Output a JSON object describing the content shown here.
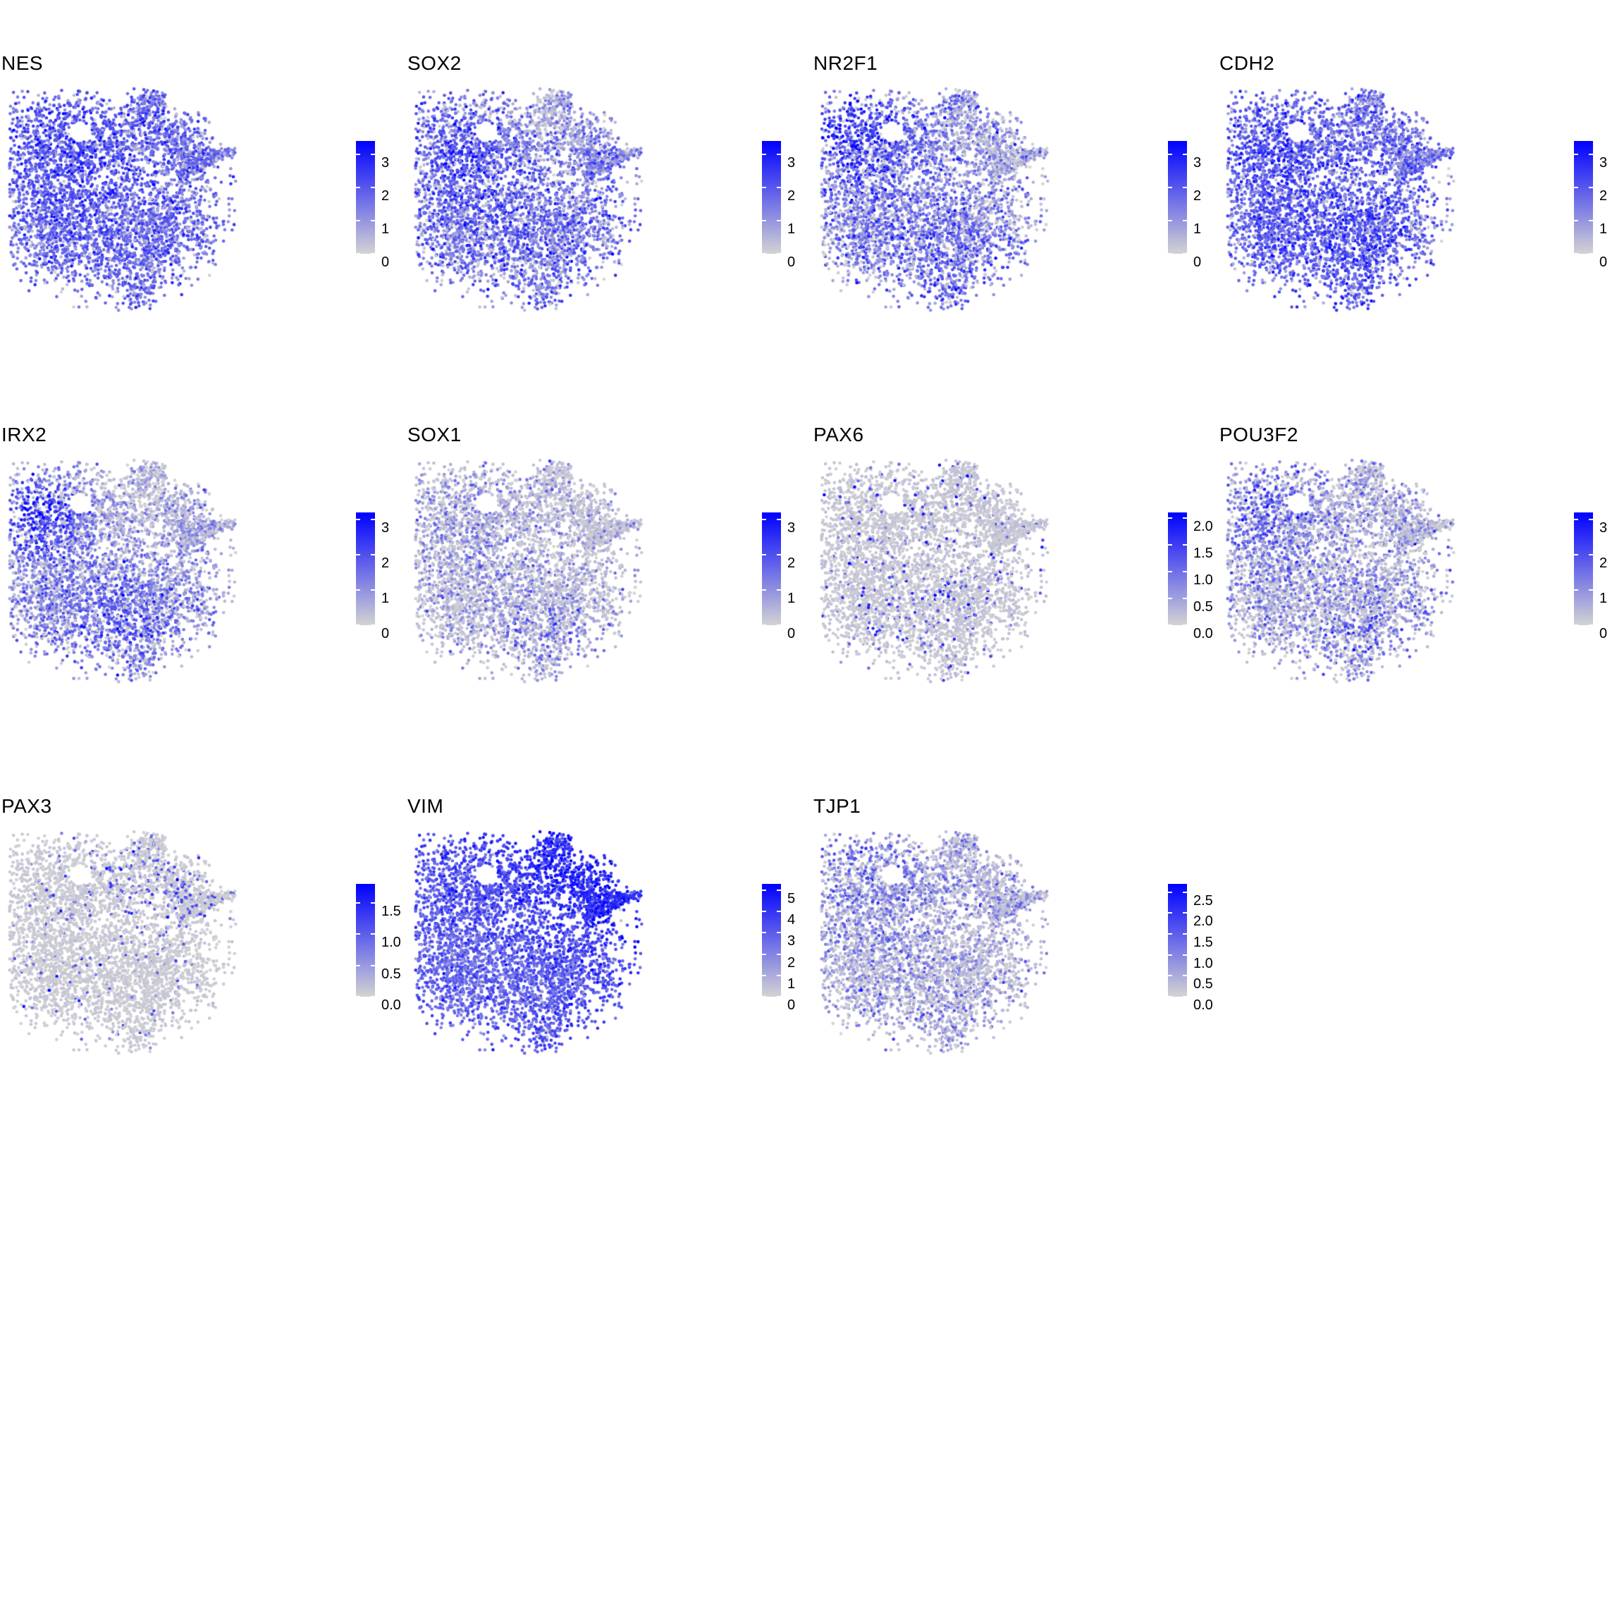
{
  "chart_data": {
    "type": "scatter",
    "subtype": "umap_feature_plots",
    "title": "",
    "xlabel": "",
    "ylabel": "",
    "axes_visible": false,
    "grid_lines": false,
    "legend_position": "right-of-each-panel",
    "colormap": {
      "low": "#D3D3D3",
      "high": "#0000FF"
    },
    "grid": {
      "columns": 4,
      "rows": 3
    },
    "seed": 42,
    "embedding": {
      "clusters": [
        {
          "cx": 0.2,
          "cy": 0.25,
          "rx": 0.155,
          "ry": 0.125,
          "n": 700
        },
        {
          "cx": 0.42,
          "cy": 0.21,
          "rx": 0.14,
          "ry": 0.095,
          "n": 350
        },
        {
          "cx": 0.595,
          "cy": 0.095,
          "rx": 0.045,
          "ry": 0.075,
          "n": 110
        },
        {
          "cx": 0.63,
          "cy": 0.045,
          "rx": 0.03,
          "ry": 0.035,
          "n": 45
        },
        {
          "cx": 0.68,
          "cy": 0.22,
          "rx": 0.1,
          "ry": 0.085,
          "n": 260
        },
        {
          "cx": 0.78,
          "cy": 0.29,
          "rx": 0.07,
          "ry": 0.055,
          "n": 140
        },
        {
          "cx": 0.4,
          "cy": 0.5,
          "rx": 0.3,
          "ry": 0.145,
          "n": 1050
        },
        {
          "cx": 0.14,
          "cy": 0.6,
          "rx": 0.11,
          "ry": 0.13,
          "n": 380
        },
        {
          "cx": 0.45,
          "cy": 0.72,
          "rx": 0.22,
          "ry": 0.12,
          "n": 780
        },
        {
          "cx": 0.68,
          "cy": 0.62,
          "rx": 0.12,
          "ry": 0.115,
          "n": 430
        },
        {
          "cx": 0.575,
          "cy": 0.895,
          "rx": 0.045,
          "ry": 0.065,
          "n": 100
        },
        {
          "type": "spike",
          "x0": 0.74,
          "y0": 0.37,
          "x1": 0.985,
          "y1": 0.285,
          "w0": 0.05,
          "w1": 0.006,
          "n": 240
        }
      ],
      "holes": [
        {
          "x": 0.315,
          "y": 0.2,
          "rx": 0.052,
          "ry": 0.045
        }
      ]
    },
    "panels": [
      {
        "gene": "NES",
        "colorbar_max": 3.4,
        "ticks": [
          {
            "value": 3,
            "label": "3"
          },
          {
            "value": 2,
            "label": "2"
          },
          {
            "value": 1,
            "label": "1"
          },
          {
            "value": 0,
            "label": "0"
          }
        ],
        "expression": {
          "frac": 0.96,
          "base": 1.5,
          "noise": 0.65,
          "lowbase": 0.5,
          "hs": [
            {
              "x": 0.2,
              "y": 0.25,
              "r": 0.22,
              "w": 0.55
            },
            {
              "x": 0.5,
              "y": 0.62,
              "r": 0.32,
              "w": 0.25
            }
          ],
          "fhs": []
        }
      },
      {
        "gene": "SOX2",
        "colorbar_max": 3.4,
        "ticks": [
          {
            "value": 3,
            "label": "3"
          },
          {
            "value": 2,
            "label": "2"
          },
          {
            "value": 1,
            "label": "1"
          },
          {
            "value": 0,
            "label": "0"
          }
        ],
        "expression": {
          "frac": 0.9,
          "base": 1.3,
          "noise": 0.7,
          "lowbase": 0.5,
          "hs": [
            {
              "x": 0.18,
              "y": 0.28,
              "r": 0.2,
              "w": 0.7
            },
            {
              "x": 0.58,
              "y": 0.13,
              "r": 0.15,
              "w": -0.8
            },
            {
              "x": 0.52,
              "y": 0.62,
              "r": 0.3,
              "w": 0.35
            }
          ],
          "fhs": []
        }
      },
      {
        "gene": "NR2F1",
        "colorbar_max": 3.4,
        "ticks": [
          {
            "value": 3,
            "label": "3"
          },
          {
            "value": 2,
            "label": "2"
          },
          {
            "value": 1,
            "label": "1"
          },
          {
            "value": 0,
            "label": "0"
          }
        ],
        "expression": {
          "frac": 0.88,
          "base": 1.0,
          "noise": 0.75,
          "lowbase": 0.5,
          "hs": [
            {
              "x": 0.15,
              "y": 0.22,
              "r": 0.18,
              "w": 1.3
            },
            {
              "x": 0.55,
              "y": 0.72,
              "r": 0.25,
              "w": 0.6
            },
            {
              "x": 0.8,
              "y": 0.3,
              "r": 0.14,
              "w": -0.4
            }
          ],
          "fhs": []
        }
      },
      {
        "gene": "CDH2",
        "colorbar_max": 3.4,
        "ticks": [
          {
            "value": 3,
            "label": "3"
          },
          {
            "value": 2,
            "label": "2"
          },
          {
            "value": 1,
            "label": "1"
          },
          {
            "value": 0,
            "label": "0"
          }
        ],
        "expression": {
          "frac": 0.95,
          "base": 1.4,
          "noise": 0.65,
          "lowbase": 0.5,
          "hs": [
            {
              "x": 0.2,
              "y": 0.22,
              "r": 0.18,
              "w": 0.6
            },
            {
              "x": 0.5,
              "y": 0.68,
              "r": 0.3,
              "w": 0.7
            }
          ],
          "fhs": []
        }
      },
      {
        "gene": "IRX2",
        "colorbar_max": 3.2,
        "ticks": [
          {
            "value": 3,
            "label": "3"
          },
          {
            "value": 2,
            "label": "2"
          },
          {
            "value": 1,
            "label": "1"
          },
          {
            "value": 0,
            "label": "0"
          }
        ],
        "expression": {
          "frac": 0.8,
          "base": 0.75,
          "noise": 0.6,
          "lowbase": 0.45,
          "hs": [
            {
              "x": 0.13,
              "y": 0.24,
              "r": 0.14,
              "w": 1.7
            },
            {
              "x": 0.45,
              "y": 0.72,
              "r": 0.26,
              "w": 0.9
            },
            {
              "x": 0.58,
              "y": 0.18,
              "r": 0.18,
              "w": -0.45
            }
          ],
          "fhs": []
        }
      },
      {
        "gene": "SOX1",
        "colorbar_max": 3.2,
        "ticks": [
          {
            "value": 3,
            "label": "3"
          },
          {
            "value": 2,
            "label": "2"
          },
          {
            "value": 1,
            "label": "1"
          },
          {
            "value": 0,
            "label": "0"
          }
        ],
        "expression": {
          "frac": 0.3,
          "base": 0.7,
          "noise": 0.55,
          "lowbase": 0.4,
          "hs": [
            {
              "x": 0.2,
              "y": 0.3,
              "r": 0.2,
              "w": 0.4
            },
            {
              "x": 0.55,
              "y": 0.8,
              "r": 0.18,
              "w": 0.5
            }
          ],
          "fhs": [
            {
              "x": 0.2,
              "y": 0.3,
              "r": 0.25,
              "w": 0.25
            },
            {
              "x": 0.55,
              "y": 0.8,
              "r": 0.2,
              "w": 0.3
            }
          ]
        }
      },
      {
        "gene": "PAX6",
        "colorbar_max": 2.1,
        "ticks": [
          {
            "value": 2.0,
            "label": "2.0"
          },
          {
            "value": 1.5,
            "label": "1.5"
          },
          {
            "value": 1.0,
            "label": "1.0"
          },
          {
            "value": 0.5,
            "label": "0.5"
          },
          {
            "value": 0.0,
            "label": "0.0"
          }
        ],
        "expression": {
          "frac": 0.06,
          "base": 1.3,
          "noise": 0.45,
          "lowbase": 0.25,
          "hs": [],
          "fhs": [
            {
              "x": 0.5,
              "y": 0.75,
              "r": 0.3,
              "w": 0.04
            }
          ]
        }
      },
      {
        "gene": "POU3F2",
        "colorbar_max": 3.2,
        "ticks": [
          {
            "value": 3,
            "label": "3"
          },
          {
            "value": 2,
            "label": "2"
          },
          {
            "value": 1,
            "label": "1"
          },
          {
            "value": 0,
            "label": "0"
          }
        ],
        "expression": {
          "frac": 0.55,
          "base": 0.85,
          "noise": 0.6,
          "lowbase": 0.4,
          "hs": [
            {
              "x": 0.16,
              "y": 0.25,
              "r": 0.17,
              "w": 0.8
            },
            {
              "x": 0.6,
              "y": 0.78,
              "r": 0.2,
              "w": 0.6
            }
          ],
          "fhs": [
            {
              "x": 0.16,
              "y": 0.25,
              "r": 0.2,
              "w": 0.25
            }
          ]
        }
      },
      {
        "gene": "PAX3",
        "colorbar_max": 1.8,
        "ticks": [
          {
            "value": 1.5,
            "label": "1.5"
          },
          {
            "value": 1.0,
            "label": "1.0"
          },
          {
            "value": 0.5,
            "label": "0.5"
          },
          {
            "value": 0.0,
            "label": "0.0"
          }
        ],
        "expression": {
          "frac": 0.035,
          "base": 1.0,
          "noise": 0.35,
          "lowbase": 0.15,
          "hs": [],
          "fhs": [
            {
              "x": 0.52,
              "y": 0.15,
              "r": 0.22,
              "w": 0.14
            },
            {
              "x": 0.72,
              "y": 0.3,
              "r": 0.15,
              "w": 0.08
            }
          ]
        }
      },
      {
        "gene": "VIM",
        "colorbar_max": 5.3,
        "ticks": [
          {
            "value": 5,
            "label": "5"
          },
          {
            "value": 4,
            "label": "4"
          },
          {
            "value": 3,
            "label": "3"
          },
          {
            "value": 2,
            "label": "2"
          },
          {
            "value": 1,
            "label": "1"
          },
          {
            "value": 0,
            "label": "0"
          }
        ],
        "expression": {
          "frac": 0.995,
          "base": 3.3,
          "noise": 0.75,
          "lowbase": 1.0,
          "hs": [
            {
              "x": 0.6,
              "y": 0.14,
              "r": 0.2,
              "w": 0.9
            },
            {
              "x": 0.88,
              "y": 0.32,
              "r": 0.13,
              "w": 0.9
            },
            {
              "x": 0.2,
              "y": 0.68,
              "r": 0.28,
              "w": -0.6
            }
          ],
          "fhs": []
        }
      },
      {
        "gene": "TJP1",
        "colorbar_max": 2.7,
        "ticks": [
          {
            "value": 2.5,
            "label": "2.5"
          },
          {
            "value": 2.0,
            "label": "2.0"
          },
          {
            "value": 1.5,
            "label": "1.5"
          },
          {
            "value": 1.0,
            "label": "1.0"
          },
          {
            "value": 0.5,
            "label": "0.5"
          },
          {
            "value": 0.0,
            "label": "0.0"
          }
        ],
        "expression": {
          "frac": 0.45,
          "base": 0.8,
          "noise": 0.5,
          "lowbase": 0.45,
          "hs": [
            {
              "x": 0.18,
              "y": 0.2,
              "r": 0.2,
              "w": 0.35
            }
          ],
          "fhs": [
            {
              "x": 0.18,
              "y": 0.22,
              "r": 0.28,
              "w": 0.2
            }
          ]
        }
      }
    ]
  }
}
